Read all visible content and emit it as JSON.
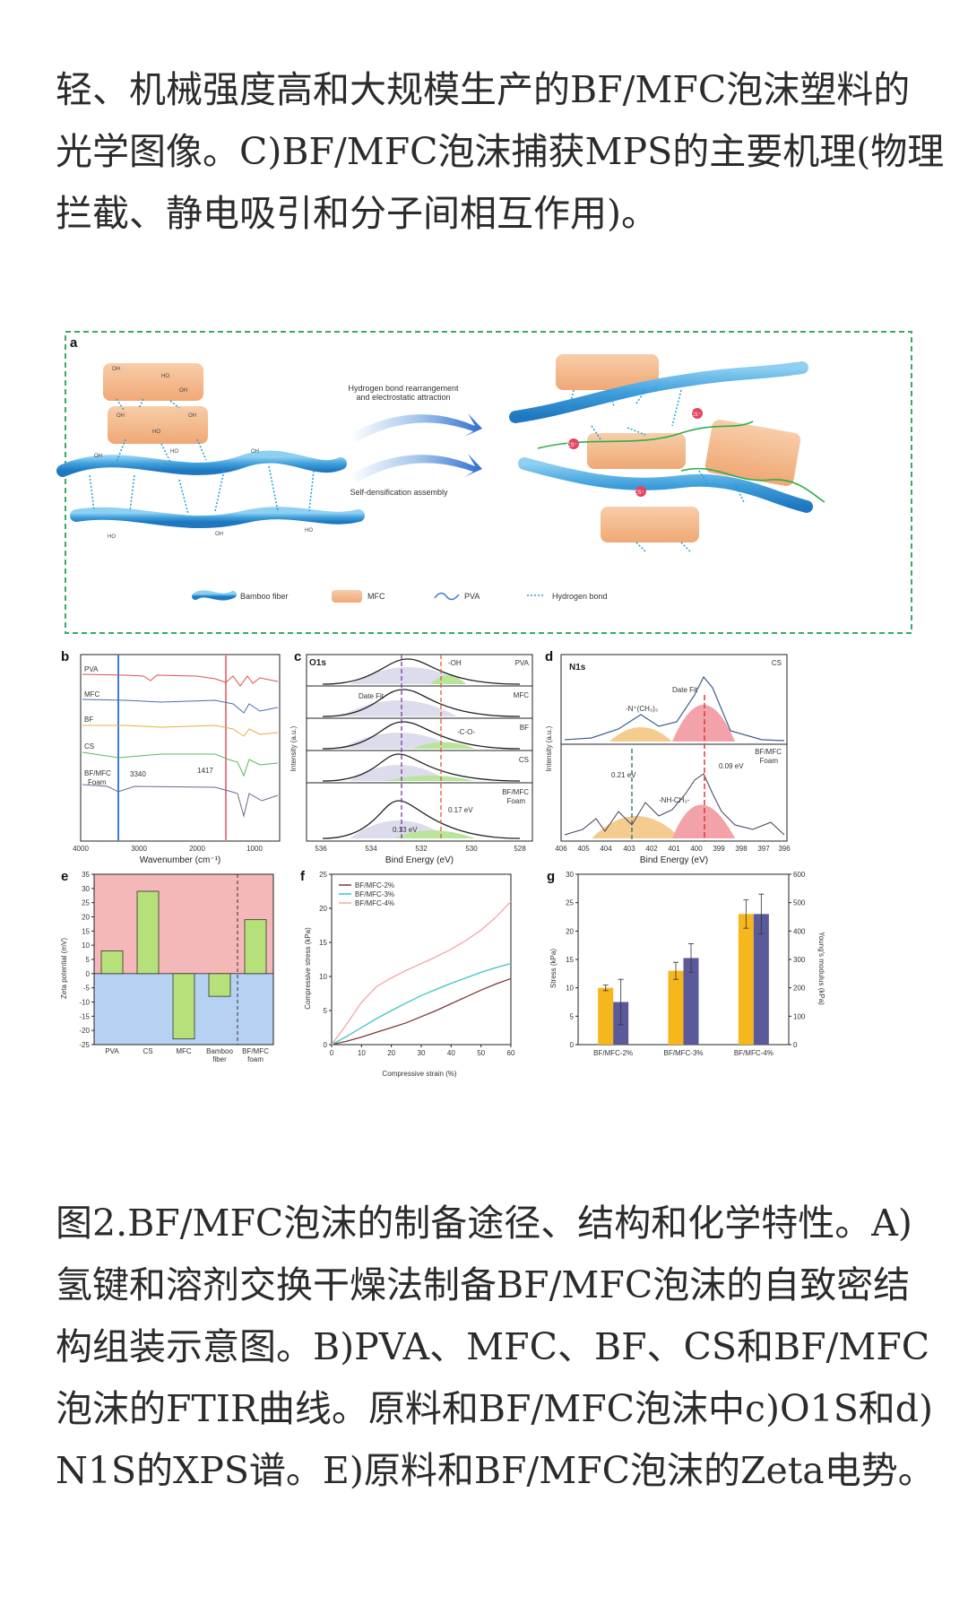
{
  "intro": {
    "lines": [
      "轻、机械强度高和大规模生产的BF/MFC泡沫塑料的",
      "光学图像。C)BF/MFC泡沫捕获MPS的主要机理(物理",
      "拦截、静电吸引和分子间相互作用)。"
    ]
  },
  "figure": {
    "panel_a": {
      "label": "a",
      "arrow_top_text_1": "Hydrogen bond rearrangement",
      "arrow_top_text_2": "and electrostatic attraction",
      "arrow_bottom_text": "Self-densification assembly",
      "cs_label": "CS⁺",
      "legend": {
        "bamboo_fiber": "Bamboo fiber",
        "mfc": "MFC",
        "pva": "PVA",
        "hydrogen_bond": "Hydrogen bond"
      },
      "colors": {
        "fiber": "#4aa6df",
        "mfc": "#f4b98c",
        "pva": "#2fae4a",
        "hbond": "#1ea0d8",
        "frame": "#3aa86a"
      }
    },
    "panel_b": {
      "label": "b",
      "xlabel": "Wavenumber (cm⁻¹)",
      "ticks": [
        "4000",
        "3000",
        "2000",
        "1000"
      ],
      "series": [
        "PVA",
        "MFC",
        "BF",
        "CS",
        "BF/MFC",
        "Foam"
      ],
      "marker_3340": "3340",
      "marker_1417": "1417",
      "colors": {
        "PVA": "#d9534f",
        "MFC": "#4a6fa5",
        "BF": "#e0b040",
        "CS": "#5cb85c",
        "Foam": "#6a6a8a"
      }
    },
    "panel_c": {
      "label": "c",
      "title": "O1s",
      "ylabel": "Intensity (a.u.)",
      "xlabel": "Bind Energy (eV)",
      "ticks": [
        "536",
        "534",
        "532",
        "530",
        "528"
      ],
      "rows": [
        "PVA",
        "MFC",
        "BF",
        "CS",
        "BF/MFC",
        "Foam"
      ],
      "ann_oh": "-OH",
      "ann_fit": "Date Fit",
      "ann_co": "-C-O-",
      "ann_017": "0.17 eV",
      "ann_013": "0.13 eV"
    },
    "panel_d": {
      "label": "d",
      "title": "N1s",
      "tag_cs": "CS",
      "tag_foam_1": "BF/MFC",
      "tag_foam_2": "Foam",
      "ylabel": "Intensity (a.u.)",
      "xlabel": "Bind Energy (eV)",
      "ticks": [
        "406",
        "405",
        "404",
        "403",
        "402",
        "401",
        "400",
        "399",
        "398",
        "397",
        "396"
      ],
      "ann_fit": "Date Fit",
      "ann_n": "-N⁺(CH₃)₃",
      "ann_nh": "-NH-CH₃-",
      "ann_021": "0.21 eV",
      "ann_009": "0.09 eV"
    },
    "panel_e": {
      "label": "e",
      "ylabel": "Zeta potential (mV)",
      "categories": [
        "PVA",
        "CS",
        "MFC",
        "Bamboo fiber",
        "BF/MFC foam"
      ],
      "cat_lines": [
        [
          "PVA"
        ],
        [
          "CS"
        ],
        [
          "MFC"
        ],
        [
          "Bamboo",
          "fiber"
        ],
        [
          "BF/MFC",
          "foam"
        ]
      ],
      "values": [
        8,
        29,
        -23,
        -8,
        19
      ],
      "yticks": [
        "35",
        "30",
        "25",
        "20",
        "15",
        "10",
        "5",
        "0",
        "-5",
        "-10",
        "-15",
        "-20",
        "-25"
      ],
      "ylim": [
        -25,
        35
      ],
      "colors": {
        "bar": "#b6e07a",
        "pos_bg": "#f5b8b8",
        "neg_bg": "#b7d1f3"
      }
    },
    "panel_f": {
      "label": "f",
      "ylabel": "Compressive stress (kPa)",
      "xlabel": "Compressive strain (%)",
      "xticks": [
        "0",
        "10",
        "20",
        "30",
        "40",
        "50",
        "60"
      ],
      "yticks": [
        "0",
        "5",
        "10",
        "15",
        "20",
        "25"
      ],
      "legend": [
        "BF/MFC-2%",
        "BF/MFC-3%",
        "BF/MFC-4%"
      ],
      "colors": [
        "#7a3b3b",
        "#3cc6c2",
        "#f0a8a8"
      ]
    },
    "panel_g": {
      "label": "g",
      "ylabel_left": "Stress (kPa)",
      "ylabel_right": "Young's modulus (kPa)",
      "categories": [
        "BF/MFC-2%",
        "BF/MFC-3%",
        "BF/MFC-4%"
      ],
      "yticks_left": [
        "0",
        "5",
        "10",
        "15",
        "20",
        "25",
        "30"
      ],
      "yticks_right": [
        "0",
        "100",
        "200",
        "300",
        "400",
        "500",
        "600"
      ],
      "colors": {
        "stress": "#f5b71c",
        "modulus": "#5a5a9a"
      }
    }
  },
  "chart_data": [
    {
      "type": "bar",
      "categories": [
        "PVA",
        "CS",
        "MFC",
        "Bamboo fiber",
        "BF/MFC foam"
      ],
      "values": [
        8,
        29,
        -23,
        -8,
        19
      ],
      "ylabel": "Zeta potential (mV)",
      "ylim": [
        -25,
        35
      ]
    },
    {
      "type": "line",
      "xlabel": "Compressive strain (%)",
      "ylabel": "Compressive stress (kPa)",
      "xlim": [
        0,
        60
      ],
      "ylim": [
        0,
        25
      ],
      "x": [
        0,
        5,
        10,
        15,
        20,
        25,
        30,
        35,
        40,
        45,
        50,
        55,
        60
      ],
      "series": [
        {
          "name": "BF/MFC-2%",
          "values": [
            0,
            0.5,
            1.1,
            1.8,
            2.5,
            3.2,
            4.1,
            5.0,
            6.0,
            7.0,
            8.0,
            8.9,
            9.7
          ]
        },
        {
          "name": "BF/MFC-3%",
          "values": [
            0,
            1.2,
            2.5,
            3.8,
            5.0,
            6.1,
            7.2,
            8.1,
            9.0,
            9.8,
            10.6,
            11.3,
            11.9
          ]
        },
        {
          "name": "BF/MFC-4%",
          "values": [
            0,
            3.0,
            6.2,
            8.5,
            9.8,
            10.9,
            11.9,
            12.9,
            14.0,
            15.3,
            16.8,
            18.7,
            21.0
          ]
        }
      ]
    },
    {
      "type": "bar",
      "categories": [
        "BF/MFC-2%",
        "BF/MFC-3%",
        "BF/MFC-4%"
      ],
      "series": [
        {
          "name": "Stress (kPa)",
          "values": [
            10,
            13,
            23
          ],
          "errors": [
            0.5,
            1.5,
            2.5
          ]
        },
        {
          "name": "Young's modulus (kPa)",
          "values": [
            150,
            305,
            460
          ],
          "errors": [
            80,
            50,
            70
          ]
        }
      ],
      "ylim": [
        0,
        30
      ],
      "y2lim": [
        0,
        600
      ]
    }
  ],
  "caption": {
    "lines": [
      "图2.BF/MFC泡沫的制备途径、结构和化学特性。A)",
      "氢键和溶剂交换干燥法制备BF/MFC泡沫的自致密结",
      "构组装示意图。B)PVA、MFC、BF、CS和BF/MFC",
      "泡沫的FTIR曲线。原料和BF/MFC泡沫中c)O1S和d)",
      "N1S的XPS谱。E)原料和BF/MFC泡沫的Zeta电势。"
    ]
  }
}
